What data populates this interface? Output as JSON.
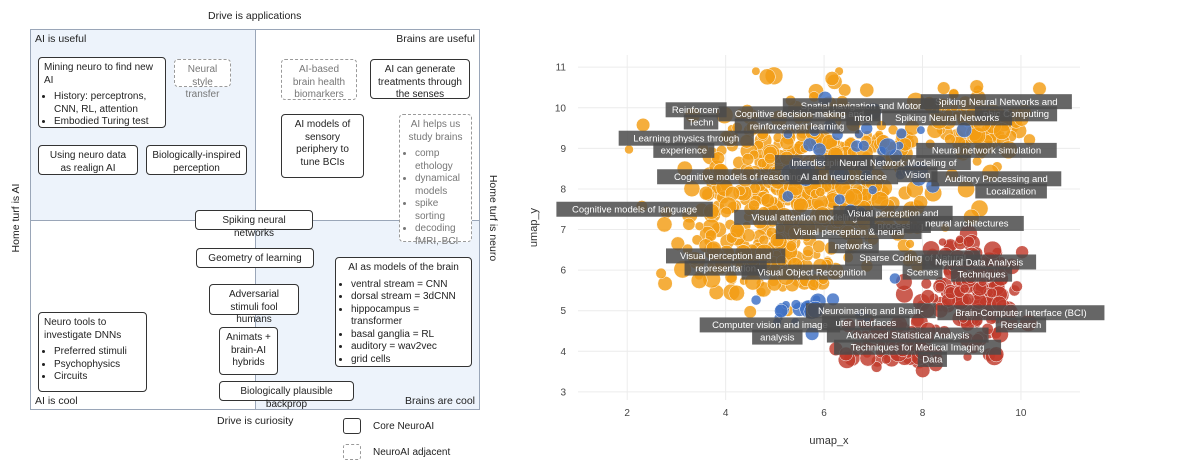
{
  "diagram": {
    "top_label": "Drive is applications",
    "bottom_label": "Drive is curiosity",
    "left_label": "Home turf is AI",
    "right_label": "Home turf is neuro",
    "corners": {
      "top_left": "AI is useful",
      "top_right": "Brains are useful",
      "bottom_left": "AI is cool",
      "bottom_right": "Brains are cool"
    },
    "boxes": {
      "mining": {
        "title": "Mining neuro to find new AI",
        "items": [
          "History: perceptrons, CNN, RL, attention",
          "Embodied Turing test"
        ]
      },
      "neural_style": "Neural style transfer",
      "ai_brain_health": "AI-based brain health biomarkers",
      "ai_treatments": "AI can generate treatments through the senses",
      "using_neuro": "Using neuro data as realign AI",
      "bio_perception": "Biologically-inspired perception",
      "ai_sensory": "AI models of sensory periphery to tune BCIs",
      "ai_helps": {
        "title": "AI helps us study brains",
        "items": [
          "comp ethology",
          "dynamical models",
          "spike sorting",
          "decoding fMRI, BCI"
        ]
      },
      "spiking": "Spiking neural networks",
      "geometry": "Geometry of learning",
      "adversarial": "Adversarial stimuli fool humans",
      "ai_models_brain": {
        "title": "AI as models of the brain",
        "items": [
          "ventral stream = CNN",
          "dorsal stream = 3dCNN",
          "hippocampus = transformer",
          "basal ganglia = RL",
          "auditory = wav2vec",
          "grid cells"
        ]
      },
      "neuro_tools": {
        "title": "Neuro tools to investigate DNNs",
        "items": [
          "Preferred stimuli",
          "Psychophysics",
          "Circuits"
        ]
      },
      "animats": "Animats + brain-AI hybrids",
      "backprop": "Biologically plausible backprop"
    },
    "legend": {
      "core": "Core NeuroAI",
      "adjacent": "NeuroAI adjacent"
    }
  },
  "chart_data": {
    "type": "scatter",
    "xlabel": "umap_x",
    "ylabel": "umap_y",
    "xlim": [
      1.0,
      11.2
    ],
    "ylim": [
      2.8,
      11.3
    ],
    "xticks": [
      2,
      4,
      6,
      8,
      10
    ],
    "yticks": [
      3,
      4,
      5,
      6,
      7,
      8,
      9,
      10,
      11
    ],
    "colors": {
      "orange": "#f39c12",
      "red": "#c0392b",
      "blue": "#3d6fc4"
    },
    "clusters": [
      {
        "color": "orange",
        "cx": 5.8,
        "cy": 8.2,
        "sx": 2.2,
        "sy": 1.7,
        "n": 430
      },
      {
        "color": "orange",
        "cx": 4.6,
        "cy": 6.3,
        "sx": 1.3,
        "sy": 1.0,
        "n": 120
      },
      {
        "color": "orange",
        "cx": 9.0,
        "cy": 9.6,
        "sx": 1.0,
        "sy": 0.8,
        "n": 90
      },
      {
        "color": "red",
        "cx": 9.0,
        "cy": 5.6,
        "sx": 0.9,
        "sy": 1.2,
        "n": 190
      },
      {
        "color": "red",
        "cx": 7.4,
        "cy": 4.2,
        "sx": 1.0,
        "sy": 0.5,
        "n": 80
      },
      {
        "color": "blue",
        "cx": 6.6,
        "cy": 8.8,
        "sx": 1.8,
        "sy": 1.2,
        "n": 45
      },
      {
        "color": "blue",
        "cx": 5.8,
        "cy": 5.0,
        "sx": 1.2,
        "sy": 0.6,
        "n": 20
      }
    ],
    "labels": [
      {
        "text": "Spiking Neural Networks and",
        "x": 9.5,
        "y": 10.15
      },
      {
        "text": "phic Computing",
        "x": 9.9,
        "y": 9.85
      },
      {
        "text": "Spatial navigation and Motor",
        "x": 6.75,
        "y": 10.05
      },
      {
        "text": "Reinforcem",
        "x": 3.4,
        "y": 9.95
      },
      {
        "text": "Cognitive decision-making and",
        "x": 5.5,
        "y": 9.85
      },
      {
        "text": "reinforcement learning",
        "x": 5.45,
        "y": 9.55
      },
      {
        "text": "Techn",
        "x": 3.5,
        "y": 9.65
      },
      {
        "text": "ntrol",
        "x": 6.8,
        "y": 9.75
      },
      {
        "text": "Spiking Neural Networks",
        "x": 8.5,
        "y": 9.75
      },
      {
        "text": "Learning physics through",
        "x": 3.2,
        "y": 9.25
      },
      {
        "text": "experience",
        "x": 3.15,
        "y": 8.95
      },
      {
        "text": "Neural network simulation",
        "x": 9.3,
        "y": 8.95
      },
      {
        "text": "Interdisciplinary",
        "x": 6.0,
        "y": 8.65
      },
      {
        "text": "Neural Network Modeling of",
        "x": 7.5,
        "y": 8.65
      },
      {
        "text": "Cognitive models of reasoning",
        "x": 4.25,
        "y": 8.3
      },
      {
        "text": "AI and neuroscience",
        "x": 6.4,
        "y": 8.3
      },
      {
        "text": "Vision",
        "x": 7.9,
        "y": 8.35
      },
      {
        "text": "Auditory Processing and",
        "x": 9.5,
        "y": 8.25
      },
      {
        "text": "Localization",
        "x": 9.8,
        "y": 7.95
      },
      {
        "text": "Cognitive models of language",
        "x": 2.15,
        "y": 7.5
      },
      {
        "text": "Visual attention modeling",
        "x": 5.6,
        "y": 7.3
      },
      {
        "text": "Visual perception and",
        "x": 7.4,
        "y": 7.4
      },
      {
        "text": "processing",
        "x": 7.55,
        "y": 7.1
      },
      {
        "text": "neural architectures",
        "x": 8.9,
        "y": 7.15
      },
      {
        "text": "Visual perception & neural",
        "x": 6.5,
        "y": 6.95
      },
      {
        "text": "networks",
        "x": 6.6,
        "y": 6.6
      },
      {
        "text": "Visual perception and",
        "x": 4.0,
        "y": 6.35
      },
      {
        "text": "Sparse Coding of Natural",
        "x": 7.8,
        "y": 6.3
      },
      {
        "text": "Neural Data Analysis",
        "x": 9.15,
        "y": 6.2
      },
      {
        "text": "representation",
        "x": 4.0,
        "y": 6.05
      },
      {
        "text": "Visual Object Recognition",
        "x": 5.75,
        "y": 5.95
      },
      {
        "text": "Scenes",
        "x": 8.0,
        "y": 5.95
      },
      {
        "text": "Techniques",
        "x": 9.2,
        "y": 5.9
      },
      {
        "text": "Neuroimaging and Brain-",
        "x": 6.95,
        "y": 5.0
      },
      {
        "text": "Brain-Computer Interface (BCI)",
        "x": 10.0,
        "y": 4.95
      },
      {
        "text": "Computer vision and image",
        "x": 4.9,
        "y": 4.65
      },
      {
        "text": "uter Interfaces",
        "x": 6.85,
        "y": 4.7
      },
      {
        "text": "Research",
        "x": 10.0,
        "y": 4.65
      },
      {
        "text": "analysis",
        "x": 5.05,
        "y": 4.35
      },
      {
        "text": "Advanced Statistical Analysis",
        "x": 7.7,
        "y": 4.4
      },
      {
        "text": "Techniques for Medical Imaging",
        "x": 7.9,
        "y": 4.1
      },
      {
        "text": "Data",
        "x": 8.2,
        "y": 3.8
      }
    ]
  }
}
